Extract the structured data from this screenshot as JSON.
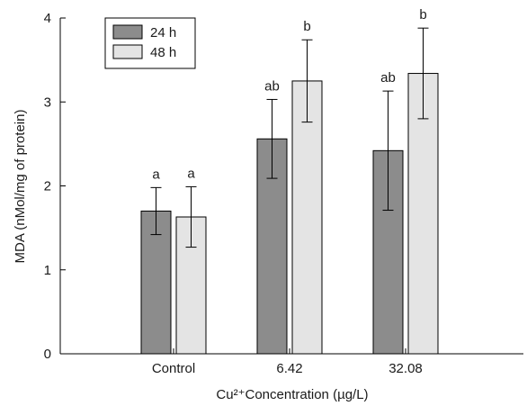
{
  "chart_data": {
    "type": "bar",
    "title": "",
    "xlabel": "Cu²⁺Concentration (µg/L)",
    "ylabel": "MDA (nMol/mg of protein)",
    "categories": [
      "Control",
      "6.42",
      "32.08"
    ],
    "ylim": [
      0,
      4
    ],
    "yticks": [
      0,
      1,
      2,
      3,
      4
    ],
    "grid": false,
    "legend_position": "top-left",
    "series": [
      {
        "name": "24 h",
        "color": "#8c8c8c",
        "values": [
          1.7,
          2.56,
          2.42
        ],
        "error": [
          0.28,
          0.47,
          0.71
        ],
        "labels": [
          "a",
          "ab",
          "ab"
        ]
      },
      {
        "name": "48 h",
        "color": "#e4e4e4",
        "values": [
          1.63,
          3.25,
          3.34
        ],
        "error": [
          0.36,
          0.49,
          0.54
        ],
        "labels": [
          "a",
          "b",
          "b"
        ]
      }
    ]
  }
}
